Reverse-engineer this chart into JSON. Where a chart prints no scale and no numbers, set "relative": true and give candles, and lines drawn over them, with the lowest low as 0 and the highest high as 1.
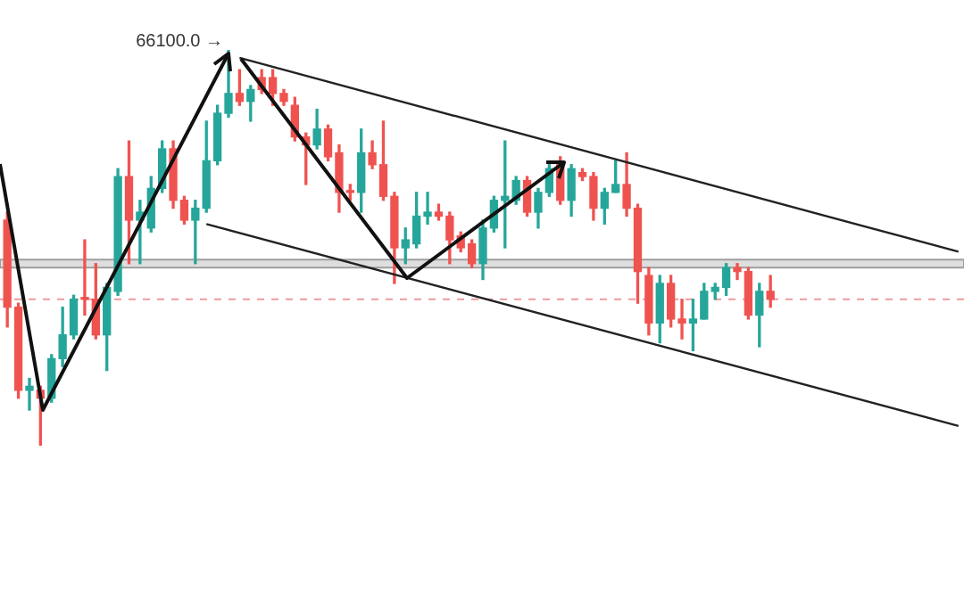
{
  "chart_data": {
    "type": "candlestick",
    "relative": true,
    "categories": [
      null,
      null,
      null,
      null,
      null,
      null,
      null,
      null,
      null,
      null,
      null,
      null,
      null,
      null,
      null,
      null,
      null,
      null,
      null,
      null,
      null,
      null,
      null,
      null,
      null,
      null,
      null,
      null,
      null,
      null,
      null,
      null,
      null,
      null,
      null,
      null,
      null,
      null,
      null,
      null,
      null,
      null,
      null,
      null,
      null,
      null,
      null,
      null,
      null,
      null,
      null,
      null,
      null,
      null,
      null,
      null,
      null,
      null,
      null,
      null,
      null,
      null,
      null,
      null,
      null,
      null,
      null,
      null,
      null,
      null,
      null,
      null,
      null,
      null,
      null,
      null,
      null,
      null,
      null,
      null,
      null,
      null,
      null,
      null,
      null,
      null,
      null
    ],
    "ohlc": [
      [
        0.57,
        0.59,
        0.3,
        0.35
      ],
      [
        0.35,
        0.36,
        0.12,
        0.14
      ],
      [
        0.14,
        0.17,
        0.09,
        0.15
      ],
      [
        0.14,
        0.15,
        0,
        0.12
      ],
      [
        0.12,
        0.23,
        0.11,
        0.22
      ],
      [
        0.22,
        0.35,
        0.2,
        0.28
      ],
      [
        0.28,
        0.38,
        0.27,
        0.37
      ],
      [
        0.37,
        0.52,
        0.33,
        0.37
      ],
      [
        0.37,
        0.46,
        0.27,
        0.28
      ],
      [
        0.28,
        0.41,
        0.19,
        0.4
      ],
      [
        0.39,
        0.7,
        0.38,
        0.68
      ],
      [
        0.68,
        0.77,
        0.46,
        0.57
      ],
      [
        0.57,
        0.62,
        0.46,
        0.59
      ],
      [
        0.55,
        0.68,
        0.54,
        0.65
      ],
      [
        0.65,
        0.77,
        0.64,
        0.75
      ],
      [
        0.75,
        0.77,
        0.6,
        0.62
      ],
      [
        0.62,
        0.63,
        0.56,
        0.57
      ],
      [
        0.57,
        0.62,
        0.46,
        0.6
      ],
      [
        0.6,
        0.82,
        0.59,
        0.72
      ],
      [
        0.72,
        0.86,
        0.71,
        0.84
      ],
      [
        0.84,
        1,
        0.83,
        0.89
      ],
      [
        0.89,
        0.95,
        0.86,
        0.87
      ],
      [
        0.87,
        0.91,
        0.82,
        0.9
      ],
      [
        0.93,
        0.95,
        0.89,
        0.9
      ],
      [
        0.93,
        0.95,
        0.86,
        0.89
      ],
      [
        0.89,
        0.9,
        0.86,
        0.87
      ],
      [
        0.86,
        0.88,
        0.77,
        0.78
      ],
      [
        0.78,
        0.79,
        0.66,
        0.76
      ],
      [
        0.76,
        0.85,
        0.75,
        0.8
      ],
      [
        0.8,
        0.81,
        0.72,
        0.73
      ],
      [
        0.74,
        0.76,
        0.59,
        0.64
      ],
      [
        0.64,
        0.66,
        0.62,
        0.64
      ],
      [
        0.64,
        0.8,
        0.59,
        0.74
      ],
      [
        0.74,
        0.77,
        0.7,
        0.71
      ],
      [
        0.71,
        0.82,
        0.62,
        0.63
      ],
      [
        0.63,
        0.64,
        0.41,
        0.5
      ],
      [
        0.5,
        0.55,
        0.46,
        0.52
      ],
      [
        0.51,
        0.64,
        0.5,
        0.58
      ],
      [
        0.58,
        0.64,
        0.56,
        0.59
      ],
      [
        0.59,
        0.61,
        0.57,
        0.58
      ],
      [
        0.58,
        0.59,
        0.46,
        0.52
      ],
      [
        0.53,
        0.54,
        0.49,
        0.5
      ],
      [
        0.51,
        0.52,
        0.45,
        0.46
      ],
      [
        0.46,
        0.57,
        0.42,
        0.55
      ],
      [
        0.55,
        0.63,
        0.54,
        0.62
      ],
      [
        0.62,
        0.77,
        0.5,
        0.63
      ],
      [
        0.62,
        0.68,
        0.61,
        0.67
      ],
      [
        0.67,
        0.68,
        0.58,
        0.59
      ],
      [
        0.59,
        0.65,
        0.55,
        0.64
      ],
      [
        0.64,
        0.71,
        0.63,
        0.7
      ],
      [
        0.71,
        0.73,
        0.61,
        0.62
      ],
      [
        0.62,
        0.71,
        0.58,
        0.7
      ],
      [
        0.69,
        0.7,
        0.67,
        0.68
      ],
      [
        0.68,
        0.69,
        0.57,
        0.6
      ],
      [
        0.6,
        0.65,
        0.56,
        0.64
      ],
      [
        0.64,
        0.72,
        0.64,
        0.66
      ],
      [
        0.66,
        0.74,
        0.58,
        0.6
      ],
      [
        0.6,
        0.61,
        0.36,
        0.44
      ],
      [
        0.43,
        0.45,
        0.28,
        0.31
      ],
      [
        0.31,
        0.43,
        0.26,
        0.41
      ],
      [
        0.41,
        0.43,
        0.3,
        0.32
      ],
      [
        0.32,
        0.37,
        0.27,
        0.31
      ],
      [
        0.31,
        0.37,
        0.24,
        0.32
      ],
      [
        0.32,
        0.41,
        0.32,
        0.39
      ],
      [
        0.39,
        0.41,
        0.37,
        0.4
      ],
      [
        0.4,
        0.46,
        0.38,
        0.45
      ],
      [
        0.45,
        0.46,
        0.42,
        0.44
      ],
      [
        0.44,
        0.45,
        0.32,
        0.33
      ],
      [
        0.33,
        0.41,
        0.25,
        0.39
      ],
      [
        0.39,
        0.43,
        0.35,
        0.37
      ],
      null,
      null,
      null,
      null,
      null,
      null,
      null,
      null,
      null,
      null,
      null,
      null,
      null,
      null,
      null,
      null,
      null
    ],
    "series": [
      {
        "type": "line",
        "color": "#222222",
        "values": [
          null,
          null,
          null,
          null,
          null,
          null,
          null,
          null,
          null,
          null,
          null,
          null,
          null,
          null,
          null,
          null,
          null,
          null,
          null,
          null,
          null,
          0.98,
          null,
          null,
          null,
          null,
          null,
          null,
          null,
          null,
          null,
          null,
          null,
          null,
          null,
          null,
          null,
          null,
          null,
          null,
          null,
          null,
          null,
          null,
          null,
          null,
          null,
          null,
          null,
          null,
          null,
          null,
          null,
          null,
          null,
          null,
          null,
          null,
          null,
          null,
          null,
          null,
          null,
          null,
          null,
          null,
          null,
          null,
          null,
          null,
          null,
          null,
          null,
          null,
          null,
          null,
          null,
          null,
          null,
          null,
          null,
          null,
          null,
          null,
          null,
          null,
          0.49
        ]
      },
      {
        "type": "line",
        "color": "#222222",
        "values": [
          null,
          null,
          null,
          null,
          null,
          null,
          null,
          null,
          null,
          null,
          null,
          null,
          null,
          null,
          null,
          null,
          null,
          null,
          0.56,
          null,
          null,
          null,
          null,
          null,
          null,
          null,
          null,
          null,
          null,
          null,
          null,
          null,
          null,
          null,
          null,
          null,
          null,
          null,
          null,
          null,
          null,
          null,
          null,
          null,
          null,
          null,
          null,
          null,
          null,
          null,
          null,
          null,
          null,
          null,
          null,
          null,
          null,
          null,
          null,
          null,
          null,
          null,
          null,
          null,
          null,
          null,
          null,
          null,
          null,
          null,
          null,
          null,
          null,
          null,
          null,
          null,
          null,
          null,
          null,
          null,
          null,
          null,
          null,
          null,
          null,
          null,
          0.05
        ]
      }
    ],
    "colors": [
      "#ef5350",
      "#ef5350",
      "#26a69a",
      "#ef5350",
      "#26a69a",
      "#26a69a",
      "#26a69a",
      "#ef5350",
      "#ef5350",
      "#26a69a",
      "#26a69a",
      "#ef5350",
      "#26a69a",
      "#26a69a",
      "#26a69a",
      "#ef5350",
      "#ef5350",
      "#26a69a",
      "#26a69a",
      "#26a69a",
      "#26a69a",
      "#ef5350",
      "#26a69a",
      "#ef5350",
      "#ef5350",
      "#ef5350",
      "#ef5350",
      "#ef5350",
      "#26a69a",
      "#ef5350",
      "#ef5350",
      "#ef5350",
      "#26a69a",
      "#ef5350",
      "#ef5350",
      "#ef5350",
      "#26a69a",
      "#26a69a",
      "#26a69a",
      "#ef5350",
      "#ef5350",
      "#ef5350",
      "#ef5350",
      "#26a69a",
      "#26a69a",
      "#26a69a",
      "#26a69a",
      "#ef5350",
      "#26a69a",
      "#26a69a",
      "#ef5350",
      "#26a69a",
      "#ef5350",
      "#ef5350",
      "#26a69a",
      "#26a69a",
      "#ef5350",
      "#ef5350",
      "#ef5350",
      "#26a69a",
      "#ef5350",
      "#ef5350",
      "#26a69a",
      "#26a69a",
      "#26a69a",
      "#26a69a",
      "#ef5350",
      "#ef5350",
      "#26a69a",
      "#ef5350",
      null,
      null,
      null,
      null,
      null,
      null,
      null,
      null,
      null,
      null,
      null,
      null,
      null,
      null,
      null,
      null,
      null
    ],
    "bands": [
      {
        "axis": "y",
        "from": 0.45,
        "to": 0.47,
        "color": "#bdbdbd"
      }
    ],
    "ref_lines": [
      {
        "axis": "y",
        "value": 0.37,
        "color": "#ef9a9a",
        "line_style": "dashed"
      }
    ],
    "annotations": [
      "66100.0 →"
    ]
  }
}
